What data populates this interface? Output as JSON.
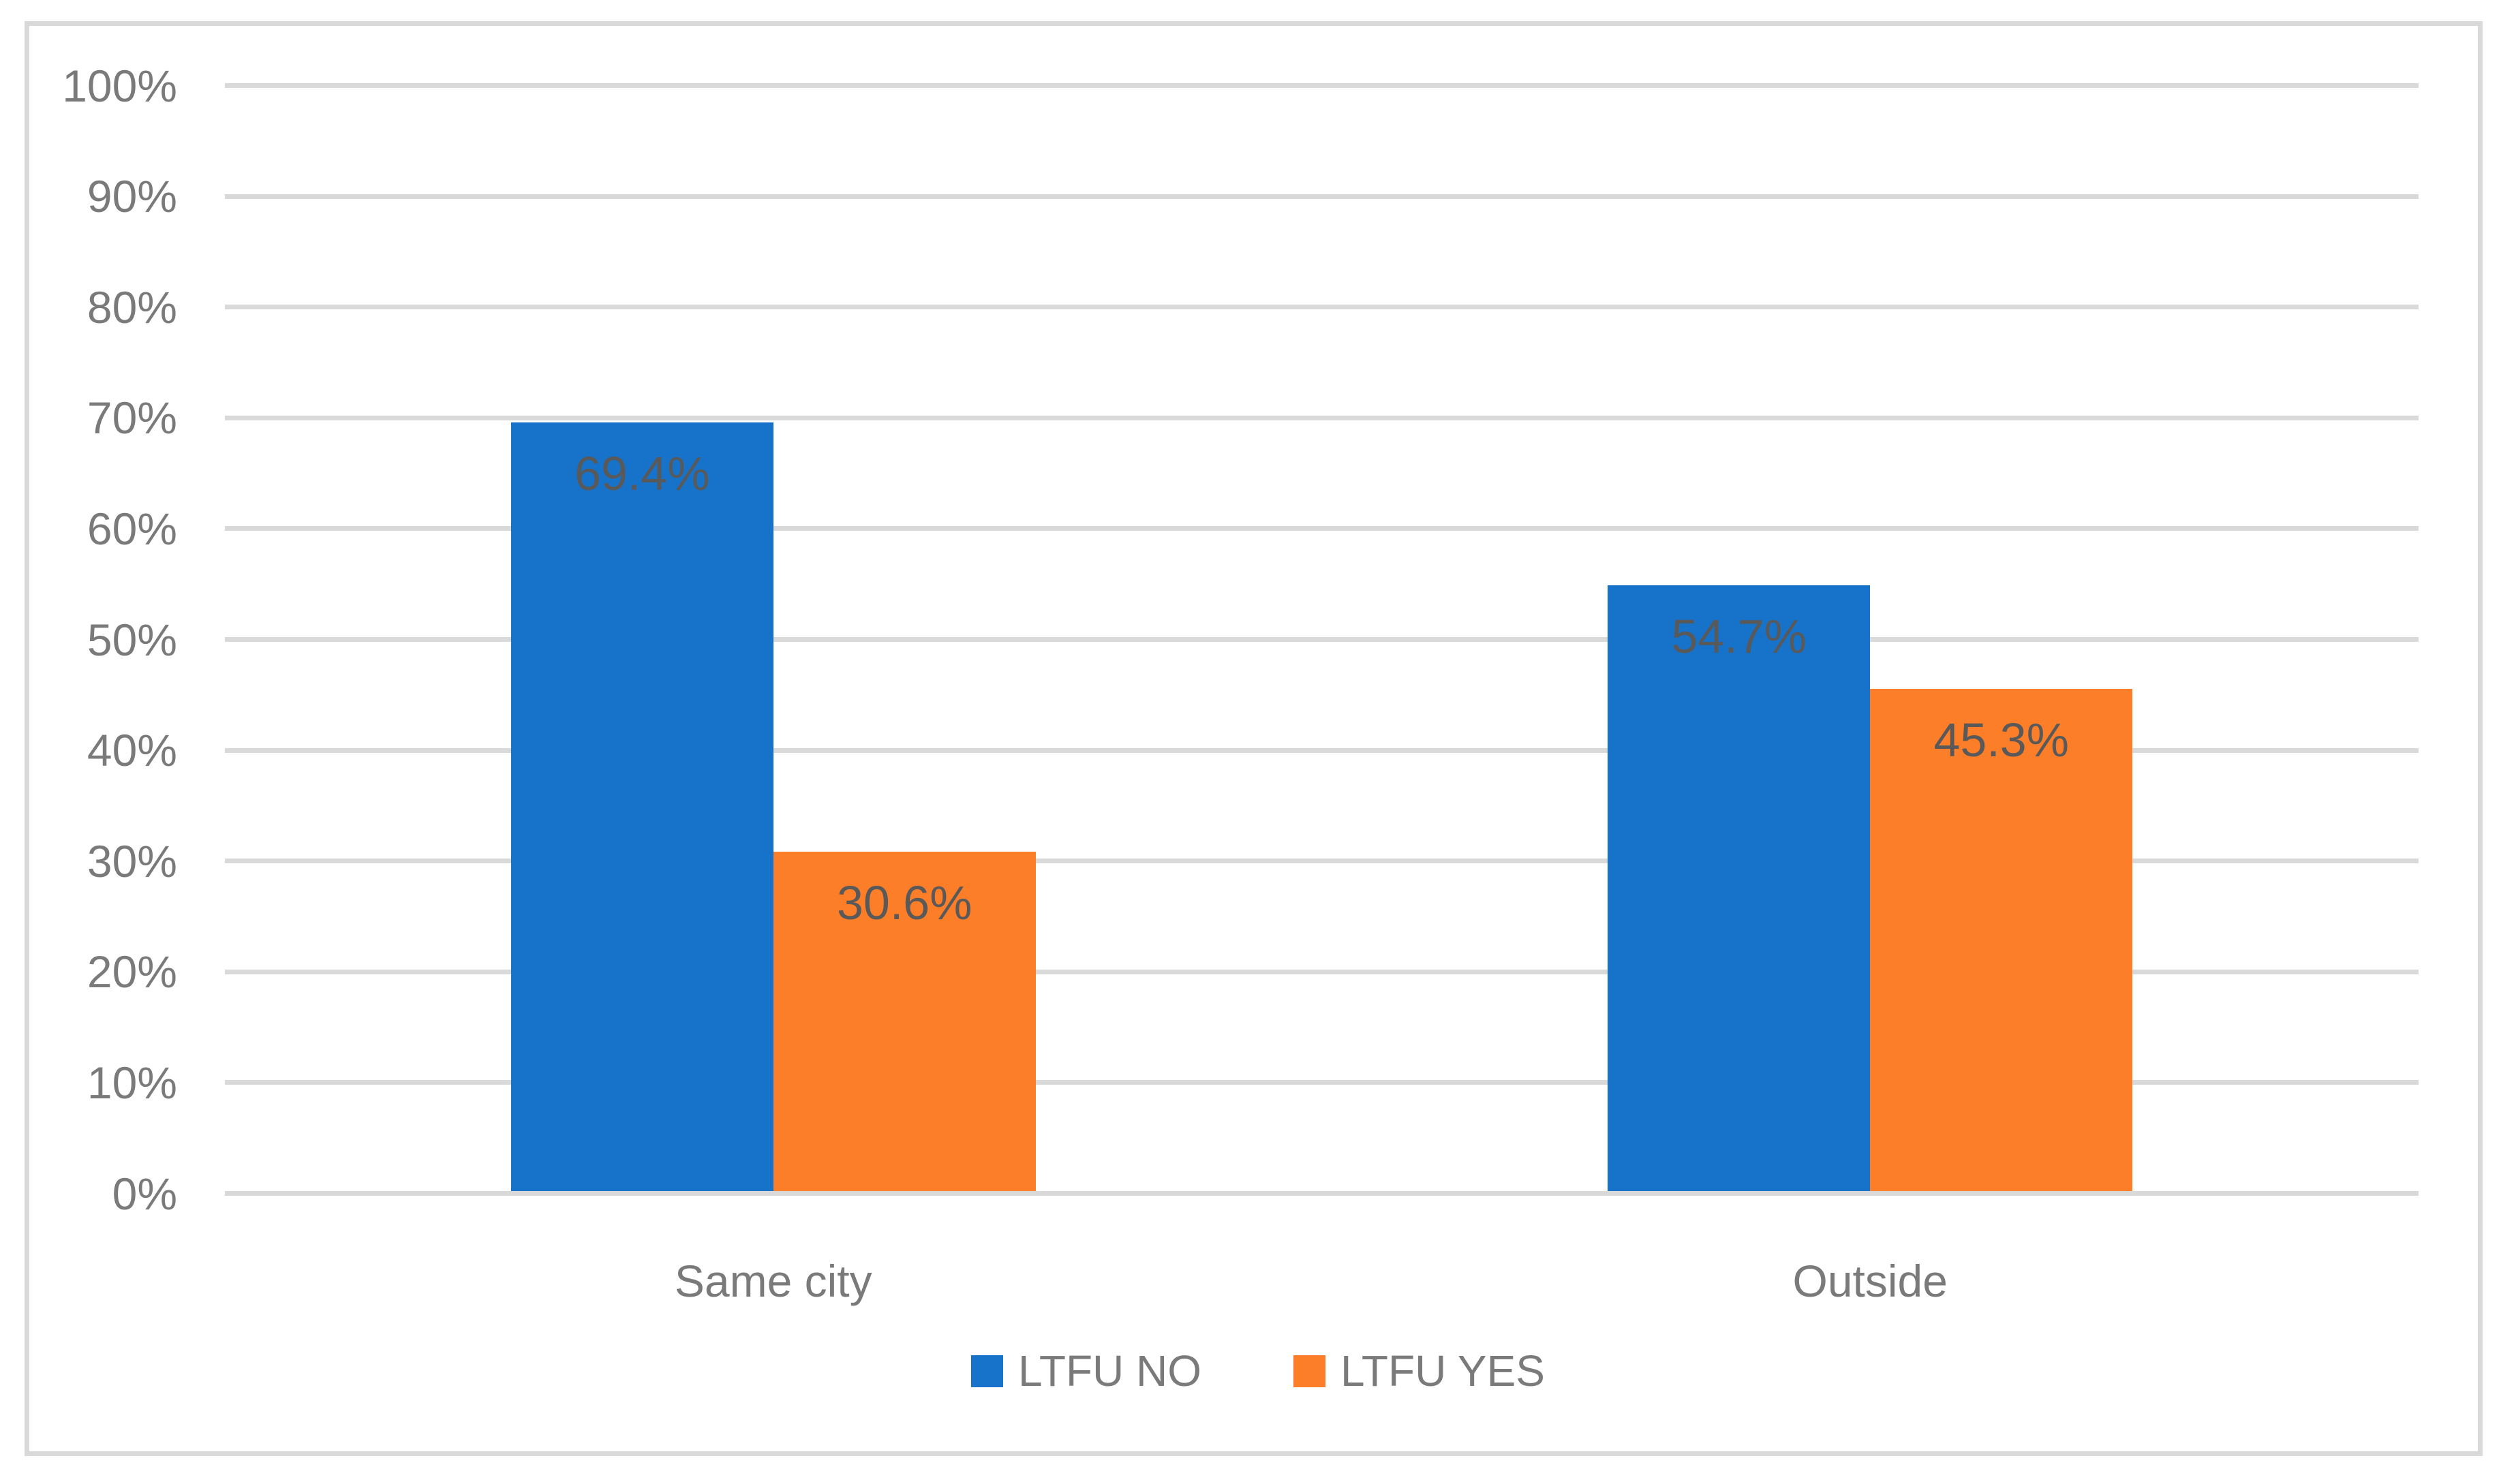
{
  "chart_data": {
    "type": "bar",
    "categories": [
      "Same city",
      "Outside"
    ],
    "series": [
      {
        "name": "LTFU NO",
        "color": "#1772C9",
        "values": [
          69.4,
          54.7
        ],
        "labels": [
          "69.4%",
          "54.7%"
        ]
      },
      {
        "name": "LTFU YES",
        "color": "#FD7E28",
        "values": [
          30.6,
          45.3
        ],
        "labels": [
          "30.6%",
          "45.3%"
        ]
      }
    ],
    "title": "",
    "xlabel": "",
    "ylabel": "",
    "y_axis": {
      "min": 0,
      "max": 100,
      "step": 10,
      "tick_labels": [
        "0%",
        "10%",
        "20%",
        "30%",
        "40%",
        "50%",
        "60%",
        "70%",
        "80%",
        "90%",
        "100%"
      ]
    },
    "grid": true,
    "legend_position": "bottom",
    "colors": {
      "gridline": "#D9D9D9",
      "chart_border": "#D9D9D9",
      "axis_text": "#7A7A7A",
      "category_text": "#7A7A7A",
      "legend_text": "#7A7A7A",
      "data_label_text": "#595959",
      "background": "#FFFFFF"
    }
  }
}
